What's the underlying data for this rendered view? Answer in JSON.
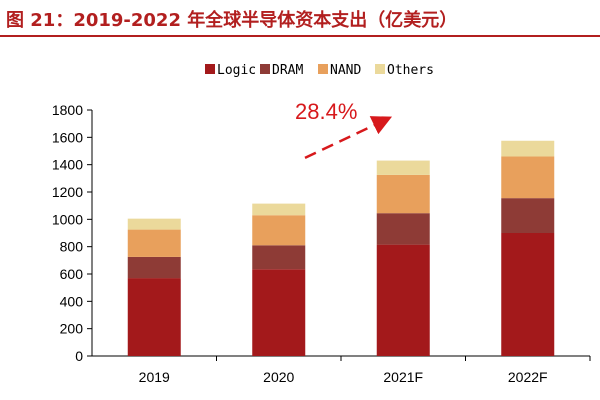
{
  "header": {
    "title": "图 21：2019-2022 年全球半导体资本支出（亿美元）"
  },
  "chart_data": {
    "type": "bar",
    "stacked": true,
    "categories": [
      "2019",
      "2020",
      "2021F",
      "2022F"
    ],
    "series": [
      {
        "name": "Logic",
        "values": [
          570,
          635,
          815,
          900
        ],
        "color": "#a3191b"
      },
      {
        "name": "DRAM",
        "values": [
          155,
          175,
          230,
          255
        ],
        "color": "#8e3b36"
      },
      {
        "name": "NAND",
        "values": [
          200,
          220,
          280,
          305
        ],
        "color": "#e8a05c"
      },
      {
        "name": "Others",
        "values": [
          80,
          85,
          105,
          115
        ],
        "color": "#ebd99b"
      }
    ],
    "y_ticks": [
      0,
      200,
      400,
      600,
      800,
      1000,
      1200,
      1400,
      1600,
      1800
    ],
    "ylim": [
      0,
      1800
    ],
    "legend_position": "top-center",
    "annotation": {
      "text": "28.4%",
      "color": "#d7191c"
    }
  }
}
